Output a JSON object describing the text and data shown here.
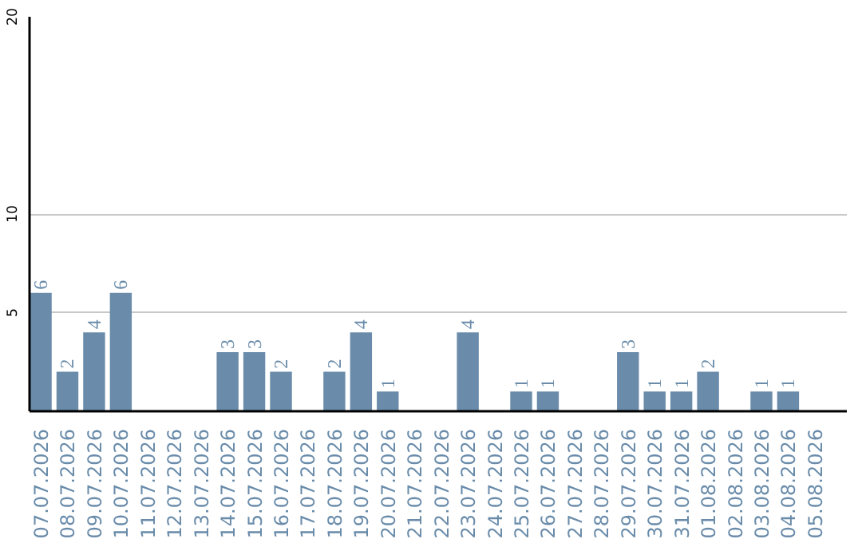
{
  "chart_data": {
    "type": "bar",
    "categories": [
      "07.07.2026",
      "08.07.2026",
      "09.07.2026",
      "10.07.2026",
      "11.07.2026",
      "12.07.2026",
      "13.07.2026",
      "14.07.2026",
      "15.07.2026",
      "16.07.2026",
      "17.07.2026",
      "18.07.2026",
      "19.07.2026",
      "20.07.2026",
      "21.07.2026",
      "22.07.2026",
      "23.07.2026",
      "24.07.2026",
      "25.07.2026",
      "26.07.2026",
      "27.07.2026",
      "28.07.2026",
      "29.07.2026",
      "30.07.2026",
      "31.07.2026",
      "01.08.2026",
      "02.08.2026",
      "03.08.2026",
      "04.08.2026",
      "05.08.2026"
    ],
    "values": [
      6,
      2,
      4,
      6,
      0,
      0,
      0,
      3,
      3,
      2,
      0,
      2,
      4,
      1,
      0,
      0,
      4,
      0,
      1,
      1,
      0,
      0,
      3,
      1,
      1,
      2,
      0,
      1,
      1,
      0
    ],
    "value_labels": [
      "6",
      "2",
      "4",
      "6",
      null,
      null,
      null,
      "3",
      "3",
      "2",
      null,
      "2",
      "4",
      "1",
      null,
      null,
      "4",
      null,
      "1",
      "1",
      null,
      null,
      "3",
      "1",
      "1",
      "2",
      null,
      "1",
      "1",
      null
    ],
    "color": "#6a8caa",
    "ylim": [
      0,
      20
    ],
    "yticks": [
      5,
      10,
      20
    ],
    "grid": "y"
  }
}
